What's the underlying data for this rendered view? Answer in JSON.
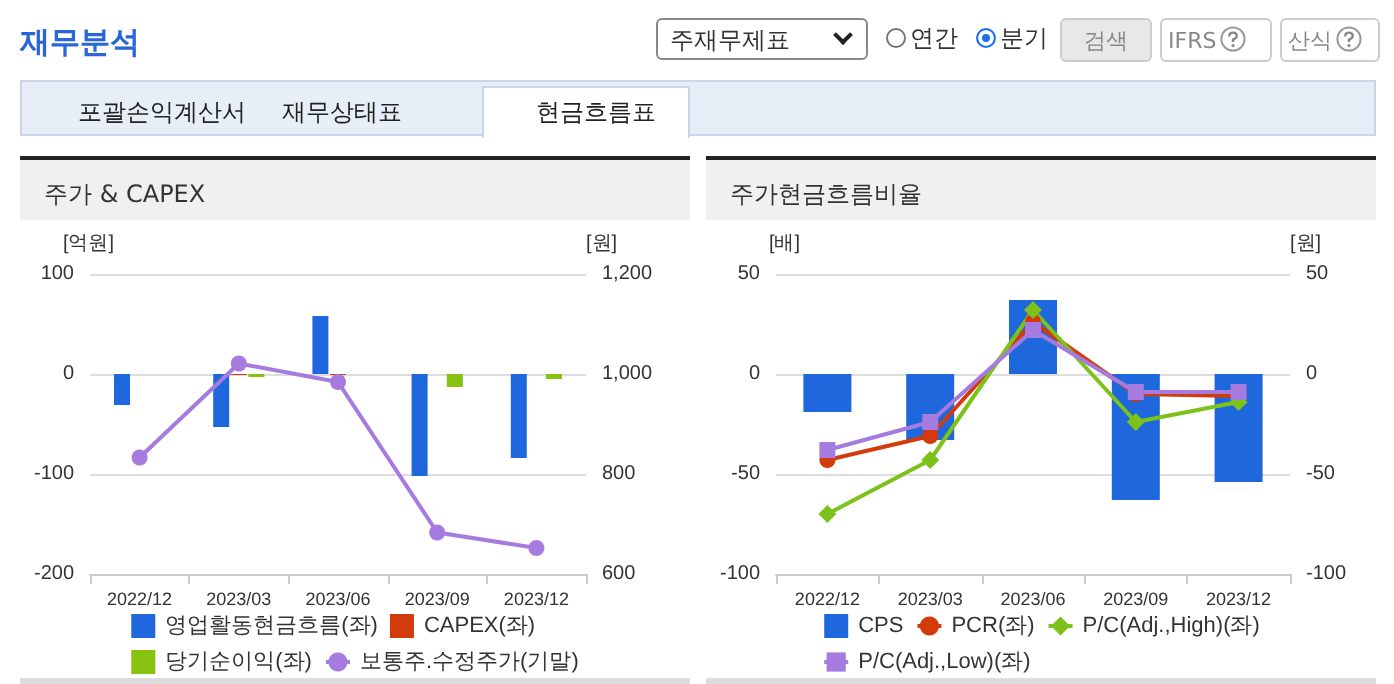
{
  "chart_data": [
    {
      "type": "bar",
      "title": "주가 & CAPEX",
      "annotations": [
        "재무분석",
        "주재무제표",
        "연간",
        "분기",
        "검색",
        "IFRS",
        "산식",
        "포괄손익계산서",
        "재무상태표",
        "현금흐름표"
      ],
      "ylabel": "[억원]",
      "y2label": "[원]",
      "categories": [
        "2022/12",
        "2023/03",
        "2023/06",
        "2023/09",
        "2023/12"
      ],
      "series": [
        {
          "name": "영업활동현금흐름(좌)",
          "color": "#1f67dc",
          "values": [
            -31,
            -53,
            58,
            -102,
            -84
          ]
        },
        {
          "name": "CAPEX(좌)",
          "color": "#d43b0c",
          "values": [
            null,
            -1,
            -1,
            null,
            null
          ]
        },
        {
          "name": "당기순이익(좌)",
          "color": "#86c20f",
          "values": [
            null,
            -3,
            null,
            -13,
            -5
          ]
        },
        {
          "name": "보통주.수정주가(기말)",
          "type": "line",
          "axis": "y2",
          "color": "#a57be0",
          "marker": "circle",
          "values": [
            833,
            1021,
            984,
            683,
            652
          ]
        }
      ],
      "ylim": [
        -200,
        100
      ],
      "yticks": [
        -200,
        -100,
        0,
        100
      ],
      "y2lim": [
        600,
        1200
      ],
      "y2ticks": [
        600,
        800,
        {
          "value": 1000,
          "label": "1,000"
        },
        {
          "value": 1200,
          "label": "1,200"
        }
      ],
      "grid": "y",
      "legend": "bottom"
    },
    {
      "type": "bar",
      "title": "주가현금흐름비율",
      "ylabel": "[배]",
      "y2label": "[원]",
      "categories": [
        "2022/12",
        "2023/03",
        "2023/06",
        "2023/09",
        "2023/12"
      ],
      "series": [
        {
          "name": "CPS",
          "axis": "y2",
          "color": "#1f67dc",
          "values": [
            -19,
            -33,
            37,
            -63,
            -54
          ]
        },
        {
          "name": "PCR(좌)",
          "type": "line",
          "color": "#d43b0c",
          "marker": "circle",
          "values": [
            -43,
            -31,
            26,
            -10,
            -11
          ]
        },
        {
          "name": "P/C(Adj.,High)(좌)",
          "type": "line",
          "color": "#7dc21a",
          "marker": "diamond",
          "values": [
            -70,
            -43,
            32,
            -24,
            -14
          ]
        },
        {
          "name": "P/C(Adj.,Low)(좌)",
          "type": "line",
          "color": "#a57be0",
          "marker": "square",
          "values": [
            -38,
            -24,
            22,
            -9,
            -9
          ]
        }
      ],
      "ylim": [
        -100,
        50
      ],
      "yticks": [
        -100,
        -50,
        0,
        50
      ],
      "y2lim": [
        -100,
        50
      ],
      "y2ticks": [
        -100,
        -50,
        0,
        50
      ],
      "grid": "y",
      "legend": "bottom"
    }
  ]
}
